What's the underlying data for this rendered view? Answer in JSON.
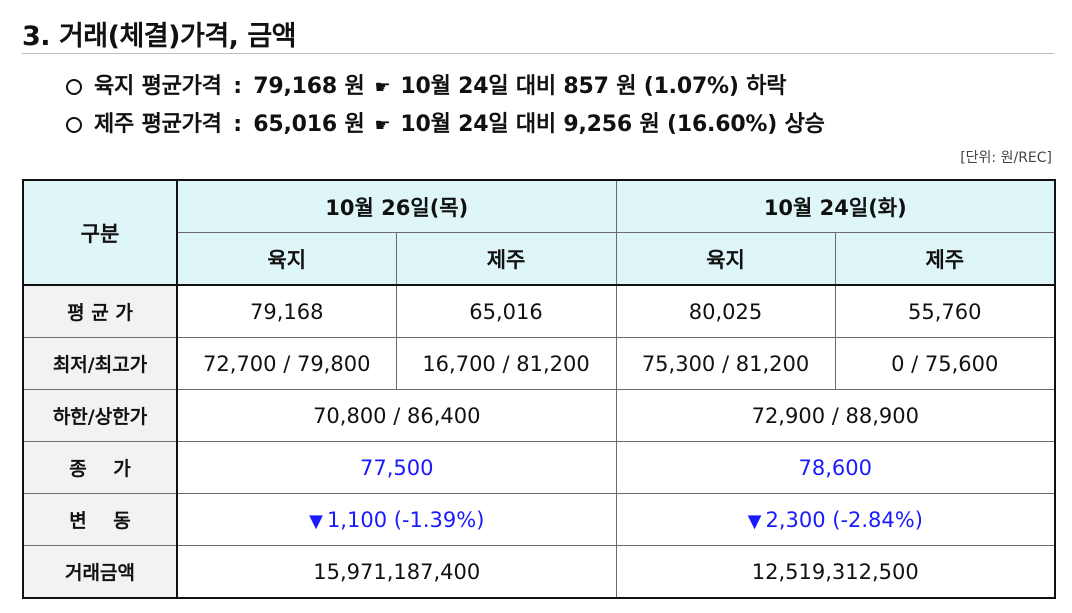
{
  "section": {
    "title": "3. 거래(체결)가격, 금액"
  },
  "summary": [
    {
      "region": "육지",
      "label": "평균가격",
      "value": "79,168",
      "unit": "원",
      "hand_icon": "pointing-hand-icon",
      "compare": "10월 24일 대비",
      "diff": "857",
      "diff_unit": "원",
      "pct": "(1.07%)",
      "direction": "하락"
    },
    {
      "region": "제주",
      "label": "평균가격",
      "value": "65,016",
      "unit": "원",
      "hand_icon": "pointing-hand-icon",
      "compare": "10월 24일 대비",
      "diff": "9,256",
      "diff_unit": "원",
      "pct": "(16.60%)",
      "direction": "상승"
    }
  ],
  "unit_note": "[단위: 원/REC]",
  "table": {
    "header": {
      "category": "구분",
      "date1": "10월 26일(목)",
      "date2": "10월 24일(화)",
      "sub": [
        "육지",
        "제주",
        "육지",
        "제주"
      ]
    },
    "rows": {
      "avg": {
        "label": "평 균 가",
        "cells": [
          "79,168",
          "65,016",
          "80,025",
          "55,760"
        ]
      },
      "minmax": {
        "label": "최저/최고가",
        "cells": [
          "72,700 / 79,800",
          "16,700 / 81,200",
          "75,300 / 81,200",
          "0 / 75,600"
        ]
      },
      "limit": {
        "label": "하한/상한가",
        "cells": [
          "70,800 / 86,400",
          "72,900 / 88,900"
        ]
      },
      "close": {
        "label": "종    가",
        "cells": [
          "77,500",
          "78,600"
        ]
      },
      "change": {
        "label": "변    동",
        "down_icon": "down-triangle-icon",
        "cells": [
          "1,100 (-1.39%)",
          "2,300 (-2.84%)"
        ]
      },
      "amount": {
        "label": "거래금액",
        "cells": [
          "15,971,187,400",
          "12,519,312,500"
        ]
      }
    }
  },
  "colors": {
    "header_bg": "#dff6f9",
    "rowhead_bg": "#f2f2f2",
    "accent_blue": "#1a1aff"
  }
}
